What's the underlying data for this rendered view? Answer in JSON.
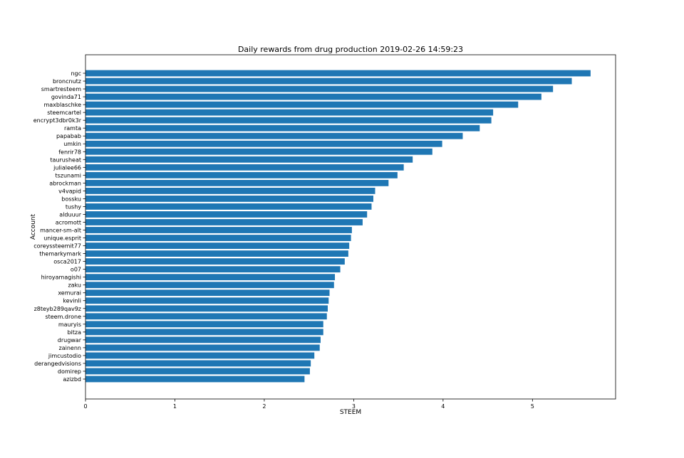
{
  "chart_data": {
    "type": "bar",
    "orientation": "horizontal",
    "title": "Daily rewards from drug production 2019-02-26 14:59:23",
    "xlabel": "STEEM",
    "ylabel": "Account",
    "xlim": [
      0,
      5.93
    ],
    "xticks": [
      0,
      1,
      2,
      3,
      4,
      5
    ],
    "grid": false,
    "bar_color": "#1f77b4",
    "categories": [
      "ngc",
      "broncnutz",
      "smartresteem",
      "govinda71",
      "maxblaschke",
      "steemcartel",
      "encrypt3dbr0k3r",
      "ramta",
      "papabab",
      "umkin",
      "fenrir78",
      "taurusheat",
      "julialee66",
      "tszunami",
      "abrockman",
      "v4vapid",
      "bossku",
      "tushy",
      "alduuur",
      "acromott",
      "mancer-sm-alt",
      "unique.esprit",
      "coreyssteemit77",
      "themarkymark",
      "osca2017",
      "o07",
      "hiroyamagishi",
      "zaku",
      "xemurai",
      "kevinli",
      "z8teyb289qav9z",
      "steem.drone",
      "mauryis",
      "bitza",
      "drugwar",
      "zainenn",
      "jimcustodio",
      "derangedvisions",
      "domirep",
      "azizbd"
    ],
    "values": [
      5.65,
      5.44,
      5.23,
      5.1,
      4.84,
      4.56,
      4.54,
      4.41,
      4.22,
      3.99,
      3.88,
      3.66,
      3.56,
      3.49,
      3.39,
      3.24,
      3.22,
      3.2,
      3.15,
      3.1,
      2.98,
      2.97,
      2.95,
      2.94,
      2.9,
      2.85,
      2.79,
      2.78,
      2.73,
      2.72,
      2.71,
      2.7,
      2.66,
      2.66,
      2.63,
      2.62,
      2.56,
      2.52,
      2.51,
      2.45
    ]
  }
}
